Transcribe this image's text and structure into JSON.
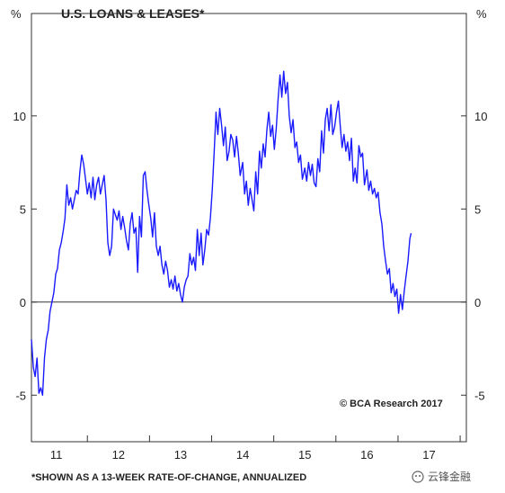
{
  "chart_data": {
    "type": "line",
    "title": "U.S. LOANS & LEASES*",
    "footnote": "*SHOWN AS A 13-WEEK RATE-OF-CHANGE, ANNUALIZED",
    "copyright": "© BCA Research 2017",
    "unit_left": "%",
    "unit_right": "%",
    "xlim": [
      2010.6,
      2017.6
    ],
    "ylim": [
      -7.5,
      15.5
    ],
    "x_ticks": [
      {
        "value": 2011,
        "label": "11"
      },
      {
        "value": 2012,
        "label": "12"
      },
      {
        "value": 2013,
        "label": "13"
      },
      {
        "value": 2014,
        "label": "14"
      },
      {
        "value": 2015,
        "label": "15"
      },
      {
        "value": 2016,
        "label": "16"
      },
      {
        "value": 2017,
        "label": "17"
      }
    ],
    "y_ticks": [
      {
        "value": -5,
        "label": "-5"
      },
      {
        "value": 0,
        "label": "0"
      },
      {
        "value": 5,
        "label": "5"
      },
      {
        "value": 10,
        "label": "10"
      }
    ],
    "series": [
      {
        "color": "#1a1aff",
        "points": [
          [
            2010.6,
            -2.0
          ],
          [
            2010.63,
            -3.5
          ],
          [
            2010.66,
            -4.0
          ],
          [
            2010.69,
            -3.0
          ],
          [
            2010.72,
            -4.9
          ],
          [
            2010.75,
            -4.6
          ],
          [
            2010.78,
            -5.0
          ],
          [
            2010.81,
            -3.0
          ],
          [
            2010.84,
            -2.0
          ],
          [
            2010.87,
            -1.5
          ],
          [
            2010.9,
            -0.5
          ],
          [
            2010.93,
            0.0
          ],
          [
            2010.96,
            0.5
          ],
          [
            2010.99,
            1.5
          ],
          [
            2011.02,
            1.8
          ],
          [
            2011.05,
            2.8
          ],
          [
            2011.08,
            3.2
          ],
          [
            2011.11,
            3.8
          ],
          [
            2011.14,
            4.5
          ],
          [
            2011.17,
            6.3
          ],
          [
            2011.2,
            5.2
          ],
          [
            2011.23,
            5.6
          ],
          [
            2011.26,
            5.0
          ],
          [
            2011.29,
            5.5
          ],
          [
            2011.32,
            6.0
          ],
          [
            2011.35,
            5.8
          ],
          [
            2011.38,
            7.0
          ],
          [
            2011.41,
            7.9
          ],
          [
            2011.44,
            7.4
          ],
          [
            2011.47,
            6.6
          ],
          [
            2011.5,
            5.8
          ],
          [
            2011.53,
            6.4
          ],
          [
            2011.56,
            5.6
          ],
          [
            2011.59,
            6.7
          ],
          [
            2011.62,
            5.5
          ],
          [
            2011.65,
            6.3
          ],
          [
            2011.68,
            6.7
          ],
          [
            2011.71,
            5.8
          ],
          [
            2011.74,
            6.3
          ],
          [
            2011.77,
            6.8
          ],
          [
            2011.8,
            5.5
          ],
          [
            2011.83,
            3.2
          ],
          [
            2011.86,
            2.5
          ],
          [
            2011.89,
            3.0
          ],
          [
            2011.92,
            5.0
          ],
          [
            2011.95,
            4.7
          ],
          [
            2011.98,
            4.4
          ],
          [
            2012.01,
            4.9
          ],
          [
            2012.04,
            3.9
          ],
          [
            2012.07,
            4.6
          ],
          [
            2012.1,
            4.0
          ],
          [
            2012.13,
            3.3
          ],
          [
            2012.16,
            2.8
          ],
          [
            2012.19,
            4.2
          ],
          [
            2012.22,
            4.8
          ],
          [
            2012.25,
            3.7
          ],
          [
            2012.28,
            4.0
          ],
          [
            2012.31,
            1.6
          ],
          [
            2012.34,
            4.6
          ],
          [
            2012.37,
            3.5
          ],
          [
            2012.4,
            6.8
          ],
          [
            2012.43,
            7.0
          ],
          [
            2012.46,
            6.0
          ],
          [
            2012.49,
            5.2
          ],
          [
            2012.52,
            4.5
          ],
          [
            2012.55,
            3.5
          ],
          [
            2012.58,
            4.8
          ],
          [
            2012.61,
            3.0
          ],
          [
            2012.64,
            2.5
          ],
          [
            2012.67,
            3.0
          ],
          [
            2012.7,
            2.0
          ],
          [
            2012.73,
            1.5
          ],
          [
            2012.76,
            2.2
          ],
          [
            2012.79,
            1.7
          ],
          [
            2012.82,
            0.8
          ],
          [
            2012.85,
            1.2
          ],
          [
            2012.88,
            0.7
          ],
          [
            2012.91,
            1.4
          ],
          [
            2012.94,
            0.6
          ],
          [
            2012.97,
            1.0
          ],
          [
            2013.0,
            0.4
          ],
          [
            2013.03,
            0.0
          ],
          [
            2013.06,
            0.8
          ],
          [
            2013.09,
            1.2
          ],
          [
            2013.12,
            1.4
          ],
          [
            2013.15,
            2.6
          ],
          [
            2013.18,
            2.0
          ],
          [
            2013.21,
            2.4
          ],
          [
            2013.24,
            1.7
          ],
          [
            2013.27,
            3.9
          ],
          [
            2013.3,
            2.5
          ],
          [
            2013.33,
            3.7
          ],
          [
            2013.36,
            2.0
          ],
          [
            2013.39,
            2.8
          ],
          [
            2013.42,
            3.9
          ],
          [
            2013.45,
            3.6
          ],
          [
            2013.48,
            4.5
          ],
          [
            2013.51,
            6.0
          ],
          [
            2013.54,
            8.0
          ],
          [
            2013.57,
            10.2
          ],
          [
            2013.6,
            9.0
          ],
          [
            2013.63,
            10.4
          ],
          [
            2013.66,
            9.5
          ],
          [
            2013.69,
            8.4
          ],
          [
            2013.72,
            9.4
          ],
          [
            2013.75,
            7.6
          ],
          [
            2013.78,
            8.1
          ],
          [
            2013.81,
            9.0
          ],
          [
            2013.84,
            8.7
          ],
          [
            2013.87,
            7.8
          ],
          [
            2013.9,
            8.9
          ],
          [
            2013.93,
            8.0
          ],
          [
            2013.96,
            6.8
          ],
          [
            2014.0,
            7.5
          ],
          [
            2014.03,
            5.8
          ],
          [
            2014.06,
            6.5
          ],
          [
            2014.09,
            5.2
          ],
          [
            2014.12,
            6.1
          ],
          [
            2014.15,
            5.5
          ],
          [
            2014.18,
            4.9
          ],
          [
            2014.21,
            7.0
          ],
          [
            2014.24,
            5.8
          ],
          [
            2014.27,
            8.1
          ],
          [
            2014.3,
            7.2
          ],
          [
            2014.33,
            8.5
          ],
          [
            2014.36,
            7.8
          ],
          [
            2014.39,
            9.3
          ],
          [
            2014.42,
            10.2
          ],
          [
            2014.45,
            8.9
          ],
          [
            2014.48,
            9.5
          ],
          [
            2014.51,
            8.2
          ],
          [
            2014.54,
            9.3
          ],
          [
            2014.57,
            10.9
          ],
          [
            2014.6,
            12.2
          ],
          [
            2014.63,
            11.0
          ],
          [
            2014.66,
            12.4
          ],
          [
            2014.69,
            11.2
          ],
          [
            2014.72,
            11.8
          ],
          [
            2014.75,
            10.0
          ],
          [
            2014.78,
            9.1
          ],
          [
            2014.81,
            9.8
          ],
          [
            2014.84,
            8.3
          ],
          [
            2014.87,
            8.6
          ],
          [
            2014.9,
            7.5
          ],
          [
            2014.93,
            7.9
          ],
          [
            2014.96,
            6.6
          ],
          [
            2015.0,
            7.2
          ],
          [
            2015.03,
            6.5
          ],
          [
            2015.06,
            7.5
          ],
          [
            2015.09,
            6.8
          ],
          [
            2015.12,
            7.4
          ],
          [
            2015.15,
            6.4
          ],
          [
            2015.18,
            6.2
          ],
          [
            2015.21,
            7.7
          ],
          [
            2015.24,
            7.0
          ],
          [
            2015.27,
            9.2
          ],
          [
            2015.3,
            8.0
          ],
          [
            2015.33,
            9.8
          ],
          [
            2015.36,
            10.4
          ],
          [
            2015.39,
            9.2
          ],
          [
            2015.42,
            10.6
          ],
          [
            2015.45,
            9.0
          ],
          [
            2015.48,
            9.4
          ],
          [
            2015.51,
            10.2
          ],
          [
            2015.54,
            10.8
          ],
          [
            2015.57,
            9.5
          ],
          [
            2015.6,
            8.3
          ],
          [
            2015.63,
            9.0
          ],
          [
            2015.66,
            8.1
          ],
          [
            2015.69,
            8.6
          ],
          [
            2015.72,
            7.6
          ],
          [
            2015.75,
            8.8
          ],
          [
            2015.78,
            6.5
          ],
          [
            2015.81,
            7.2
          ],
          [
            2015.84,
            6.4
          ],
          [
            2015.87,
            8.4
          ],
          [
            2015.9,
            7.8
          ],
          [
            2015.93,
            8.0
          ],
          [
            2015.96,
            6.3
          ],
          [
            2016.0,
            7.1
          ],
          [
            2016.03,
            6.0
          ],
          [
            2016.06,
            6.5
          ],
          [
            2016.09,
            5.8
          ],
          [
            2016.12,
            6.1
          ],
          [
            2016.15,
            5.6
          ],
          [
            2016.18,
            5.9
          ],
          [
            2016.21,
            4.8
          ],
          [
            2016.24,
            4.2
          ],
          [
            2016.27,
            3.0
          ],
          [
            2016.3,
            2.2
          ],
          [
            2016.33,
            1.5
          ],
          [
            2016.36,
            1.8
          ],
          [
            2016.39,
            0.5
          ],
          [
            2016.42,
            1.0
          ],
          [
            2016.45,
            0.3
          ],
          [
            2016.48,
            0.7
          ],
          [
            2016.51,
            -0.6
          ],
          [
            2016.54,
            0.4
          ],
          [
            2016.57,
            -0.4
          ],
          [
            2016.6,
            0.6
          ],
          [
            2016.63,
            1.4
          ],
          [
            2016.66,
            2.2
          ],
          [
            2016.69,
            3.4
          ],
          [
            2016.71,
            3.7
          ]
        ]
      }
    ],
    "zero_line": true,
    "grid": false
  },
  "watermark": "云锋金融"
}
